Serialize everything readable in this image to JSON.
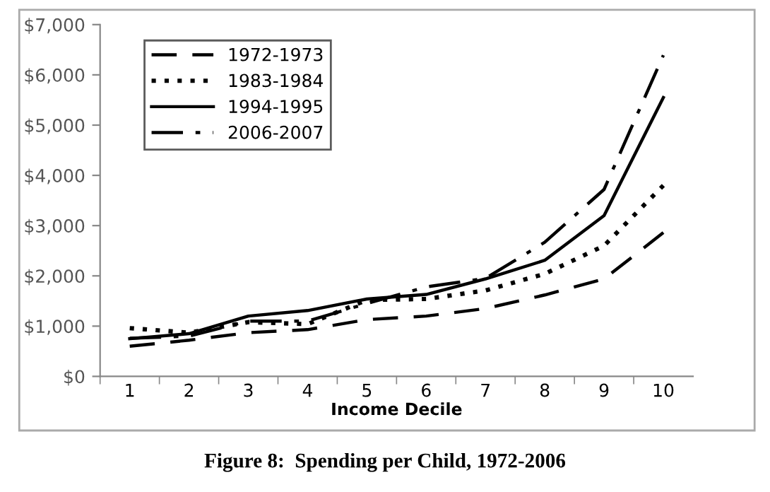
{
  "chart_data": {
    "type": "line",
    "title": "Figure 8:  Spending per Child, 1972-2006",
    "xlabel": "Income Decile",
    "categories": [
      "1",
      "2",
      "3",
      "4",
      "5",
      "6",
      "7",
      "8",
      "9",
      "10"
    ],
    "series": [
      {
        "name": "1972-1973",
        "color": "#000000",
        "line_style": "dashed",
        "values": [
          600,
          720,
          870,
          930,
          1130,
          1200,
          1350,
          1620,
          1940,
          2860
        ]
      },
      {
        "name": "1983-1984",
        "color": "#000000",
        "line_style": "dotted",
        "values": [
          960,
          870,
          1080,
          1040,
          1520,
          1540,
          1710,
          2040,
          2600,
          3800
        ]
      },
      {
        "name": "1994-1995",
        "color": "#000000",
        "line_style": "solid",
        "values": [
          750,
          850,
          1200,
          1310,
          1540,
          1630,
          1940,
          2310,
          3200,
          5550
        ]
      },
      {
        "name": "2006-2007",
        "color": "#000000",
        "line_style": "dashdot",
        "values": [
          760,
          800,
          1100,
          1100,
          1450,
          1780,
          1950,
          2670,
          3720,
          6390
        ]
      }
    ],
    "ylim": [
      0,
      7000
    ],
    "yticks": [
      {
        "value": 0,
        "label": "$0"
      },
      {
        "value": 1000,
        "label": "$1,000"
      },
      {
        "value": 2000,
        "label": "$2,000"
      },
      {
        "value": 3000,
        "label": "$3,000"
      },
      {
        "value": 4000,
        "label": "$4,000"
      },
      {
        "value": 5000,
        "label": "$5,000"
      },
      {
        "value": 6000,
        "label": "$6,000"
      },
      {
        "value": 7000,
        "label": "$7,000"
      }
    ],
    "grid": false,
    "legend": "top left",
    "marker": "none"
  }
}
